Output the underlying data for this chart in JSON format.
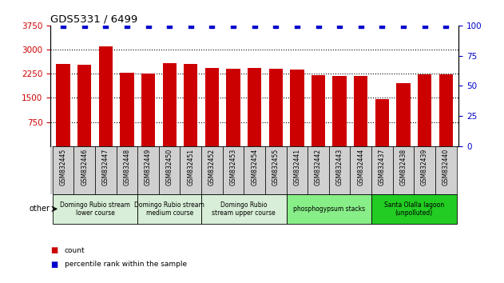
{
  "title": "GDS5331 / 6499",
  "samples": [
    "GSM832445",
    "GSM832446",
    "GSM832447",
    "GSM832448",
    "GSM832449",
    "GSM832450",
    "GSM832451",
    "GSM832452",
    "GSM832453",
    "GSM832454",
    "GSM832455",
    "GSM832441",
    "GSM832442",
    "GSM832443",
    "GSM832444",
    "GSM832437",
    "GSM832438",
    "GSM832439",
    "GSM832440"
  ],
  "counts": [
    2550,
    2530,
    3100,
    2270,
    2250,
    2580,
    2560,
    2420,
    2400,
    2430,
    2400,
    2380,
    2200,
    2190,
    2190,
    1460,
    1950,
    2230,
    2240
  ],
  "percentiles": [
    100,
    100,
    100,
    100,
    100,
    100,
    100,
    100,
    100,
    100,
    100,
    100,
    100,
    100,
    100,
    100,
    100,
    100,
    100
  ],
  "bar_color": "#cc0000",
  "dot_color": "#0000cc",
  "ylim_left": [
    0,
    3750
  ],
  "yticks_left": [
    750,
    1500,
    2250,
    3000,
    3750
  ],
  "ylim_right": [
    0,
    100
  ],
  "yticks_right": [
    0,
    25,
    50,
    75,
    100
  ],
  "groups": [
    {
      "label": "Domingo Rubio stream\nlower course",
      "start": 0,
      "end": 3,
      "color": "#d8eed8"
    },
    {
      "label": "Domingo Rubio stream\nmedium course",
      "start": 4,
      "end": 6,
      "color": "#d8eed8"
    },
    {
      "label": "Domingo Rubio\nstream upper course",
      "start": 7,
      "end": 10,
      "color": "#d8eed8"
    },
    {
      "label": "phosphogypsum stacks",
      "start": 11,
      "end": 14,
      "color": "#88ee88"
    },
    {
      "label": "Santa Olalla lagoon\n(unpolluted)",
      "start": 15,
      "end": 18,
      "color": "#22cc22"
    }
  ],
  "tick_bg_color": "#d0d0d0",
  "legend_count_color": "#cc0000",
  "legend_pct_color": "#0000cc",
  "other_label": "other"
}
